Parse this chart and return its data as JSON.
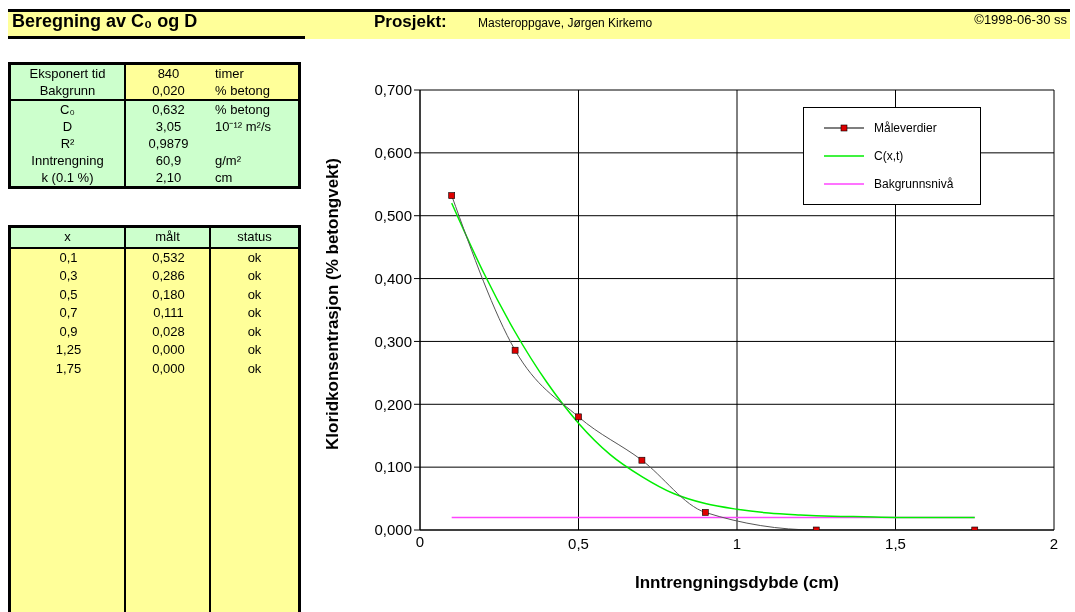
{
  "chart_data": [
    {
      "type": "other",
      "title": "Beregning av C₀ og D",
      "subtitle": "Prosjekt:",
      "annotations": [
        "Masteroppgave, Jørgen Kirkemo",
        "©1998-06-30 ss",
        "Eksponert tid",
        "840",
        "timer",
        "Bakgrunn",
        "0,020",
        "% betong",
        "C₀",
        "0,632",
        "% betong",
        "D",
        "3,05",
        "10⁻¹² m²/s",
        "R²",
        "0,9879",
        null,
        "Inntrengning",
        "60,9",
        "g/m²",
        "k (0.1 %)",
        "2,10",
        "cm",
        "x",
        "målt",
        "status",
        "0,1",
        "0,532",
        "ok",
        "0,3",
        "0,286",
        "ok",
        "0,5",
        "0,180",
        "ok",
        "0,7",
        "0,111",
        "ok",
        "0,9",
        "0,028",
        "ok",
        "1,25",
        "0,000",
        "ok",
        "1,75",
        "0,000",
        "ok"
      ]
    },
    {
      "type": "line",
      "xlabel": "Inntrengningsdybde (cm)",
      "ylabel": "Kloridkonsentrasjon (% betongvekt)",
      "xlim": [
        0,
        2
      ],
      "xticks": [
        0,
        {
          "value": 0.5,
          "label": "0,5"
        },
        1,
        {
          "value": 1.5,
          "label": "1,5"
        },
        2
      ],
      "ylim": [
        0,
        0.7
      ],
      "yticks": [
        {
          "value": 0,
          "label": "0,000"
        },
        {
          "value": 0.1,
          "label": "0,100"
        },
        {
          "value": 0.2,
          "label": "0,200"
        },
        {
          "value": 0.3,
          "label": "0,300"
        },
        {
          "value": 0.4,
          "label": "0,400"
        },
        {
          "value": 0.5,
          "label": "0,500"
        },
        {
          "value": 0.6,
          "label": "0,600"
        },
        {
          "value": 0.7,
          "label": "0,700"
        }
      ],
      "grid": true,
      "legend": "top right",
      "series": [
        {
          "name": "Måleverdier",
          "color": "#555555",
          "marker": "square",
          "x": [
            0.1,
            0.3,
            0.5,
            0.7,
            0.9,
            1.25,
            1.75
          ],
          "values": [
            0.532,
            0.286,
            0.18,
            0.111,
            0.028,
            0.0,
            0.0
          ]
        },
        {
          "name": "C(x,t)",
          "color": "#00ee00",
          "marker": "none",
          "x": [
            0.1,
            0.2,
            0.3,
            0.4,
            0.5,
            0.6,
            0.7,
            0.8,
            0.9,
            1.0,
            1.1,
            1.2,
            1.3,
            1.4,
            1.5,
            1.75
          ],
          "values": [
            0.52,
            0.41,
            0.315,
            0.235,
            0.17,
            0.12,
            0.085,
            0.058,
            0.042,
            0.033,
            0.027,
            0.024,
            0.022,
            0.021,
            0.02,
            0.02
          ]
        },
        {
          "name": "Bakgrunnsnivå",
          "color": "#ff44ff",
          "marker": "none",
          "x": [
            0.1,
            1.75
          ],
          "values": [
            0.02,
            0.02
          ]
        }
      ]
    }
  ]
}
